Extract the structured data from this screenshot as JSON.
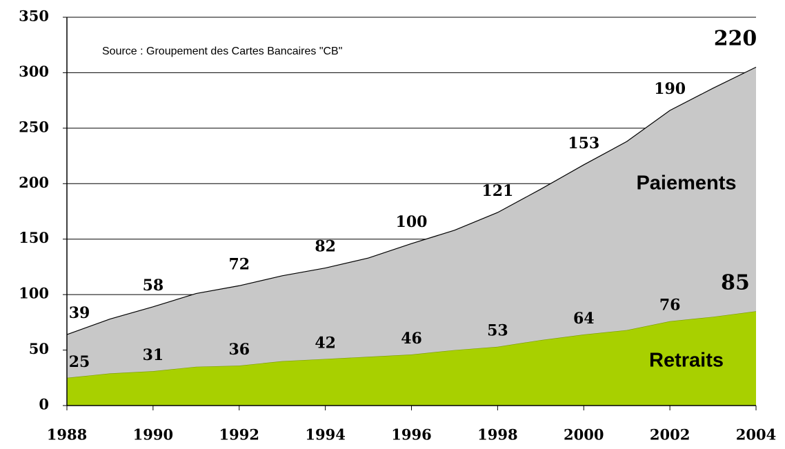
{
  "chart_data": {
    "type": "area",
    "stacked": true,
    "annotation": "Source : Groupement des Cartes Bancaires \"CB\"",
    "x": [
      1988,
      1989,
      1990,
      1991,
      1992,
      1993,
      1994,
      1995,
      1996,
      1997,
      1998,
      1999,
      2000,
      2001,
      2002,
      2003,
      2004
    ],
    "series": [
      {
        "name": "Retraits",
        "color": "#a8d000",
        "values": [
          25,
          29,
          31,
          35,
          36,
          40,
          42,
          44,
          46,
          50,
          53,
          59,
          64,
          68,
          76,
          80,
          85
        ]
      },
      {
        "name": "Paiements",
        "color": "#c8c8c8",
        "values": [
          39,
          49,
          58,
          66,
          72,
          77,
          82,
          89,
          100,
          108,
          121,
          136,
          153,
          170,
          190,
          206,
          220
        ]
      }
    ],
    "xlim": [
      1988,
      2004
    ],
    "xticks": [
      1988,
      1990,
      1992,
      1994,
      1996,
      1998,
      2000,
      2002,
      2004
    ],
    "ylim": [
      0,
      350
    ],
    "yticks": [
      0,
      50,
      100,
      150,
      200,
      250,
      300,
      350
    ],
    "grid": true
  }
}
